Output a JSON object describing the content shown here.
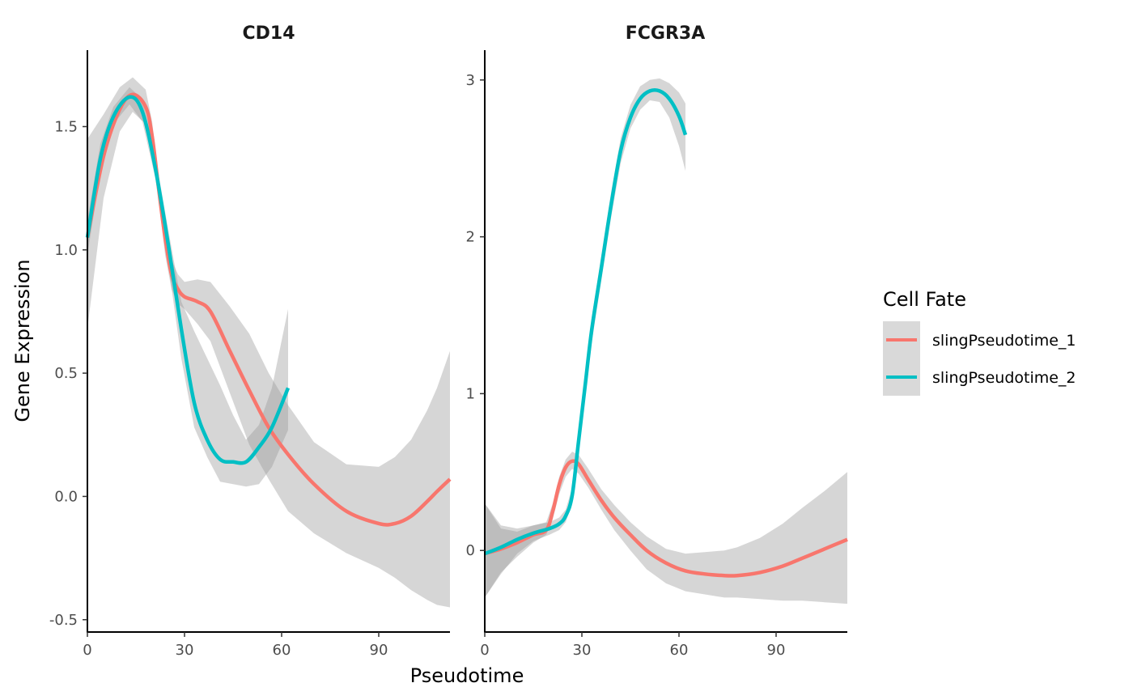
{
  "colors": {
    "series_1": "#F8766D",
    "series_2": "#00BFC4",
    "ribbon": "#999999",
    "axis": "#000000",
    "tick_text": "#4d4d4d"
  },
  "chart_data": [
    {
      "type": "line",
      "title": "CD14",
      "xlabel": "Pseudotime",
      "ylabel": "Gene Expression",
      "xlim": [
        0,
        112
      ],
      "ylim": [
        -0.55,
        1.81
      ],
      "xticks": [
        0,
        30,
        60,
        90
      ],
      "xtick_labels": [
        "0",
        "30",
        "60",
        "90"
      ],
      "yticks": [
        -0.5,
        0.0,
        0.5,
        1.0,
        1.5
      ],
      "ytick_labels": [
        "-0.5",
        "0.0",
        "0.5",
        "1.0",
        "1.5"
      ],
      "confidence_band": true,
      "series": [
        {
          "name": "slingPseudotime_1",
          "x": [
            0,
            5,
            10,
            14,
            18,
            20,
            22,
            24,
            26,
            28,
            30,
            34,
            38,
            44,
            50,
            56,
            62,
            70,
            80,
            90,
            95,
            100,
            105,
            108,
            112
          ],
          "y": [
            1.05,
            1.38,
            1.57,
            1.63,
            1.58,
            1.46,
            1.25,
            1.05,
            0.9,
            0.84,
            0.81,
            0.79,
            0.75,
            0.59,
            0.43,
            0.28,
            0.17,
            0.05,
            -0.06,
            -0.11,
            -0.11,
            -0.08,
            -0.02,
            0.02,
            0.07
          ],
          "lower": [
            0.68,
            1.21,
            1.48,
            1.56,
            1.51,
            1.4,
            1.2,
            0.98,
            0.84,
            0.78,
            0.76,
            0.7,
            0.63,
            0.42,
            0.21,
            0.07,
            -0.06,
            -0.15,
            -0.23,
            -0.29,
            -0.33,
            -0.38,
            -0.42,
            -0.44,
            -0.45
          ],
          "upper": [
            1.45,
            1.55,
            1.66,
            1.7,
            1.65,
            1.52,
            1.3,
            1.12,
            0.96,
            0.9,
            0.87,
            0.88,
            0.87,
            0.77,
            0.66,
            0.5,
            0.37,
            0.22,
            0.13,
            0.12,
            0.16,
            0.23,
            0.35,
            0.44,
            0.59
          ]
        },
        {
          "name": "slingPseudotime_2",
          "x": [
            0,
            4,
            8,
            13,
            17,
            21,
            25,
            29,
            33,
            37,
            41,
            45,
            49,
            53,
            57,
            62
          ],
          "y": [
            1.05,
            1.37,
            1.54,
            1.62,
            1.56,
            1.33,
            1.02,
            0.68,
            0.38,
            0.23,
            0.15,
            0.14,
            0.14,
            0.2,
            0.28,
            0.44
          ],
          "lower": [
            0.98,
            1.31,
            1.51,
            1.59,
            1.52,
            1.29,
            0.94,
            0.56,
            0.28,
            0.16,
            0.06,
            0.05,
            0.04,
            0.05,
            0.12,
            0.27
          ],
          "upper": [
            1.12,
            1.43,
            1.58,
            1.66,
            1.61,
            1.38,
            1.08,
            0.79,
            0.67,
            0.56,
            0.45,
            0.33,
            0.23,
            0.29,
            0.44,
            0.76
          ]
        }
      ]
    },
    {
      "type": "line",
      "title": "FCGR3A",
      "xlabel": "Pseudotime",
      "ylabel": "Gene Expression",
      "xlim": [
        0,
        112
      ],
      "ylim": [
        -0.52,
        3.19
      ],
      "xticks": [
        0,
        30,
        60,
        90
      ],
      "xtick_labels": [
        "0",
        "30",
        "60",
        "90"
      ],
      "yticks": [
        0,
        1,
        2,
        3
      ],
      "ytick_labels": [
        "0",
        "1",
        "2",
        "3"
      ],
      "confidence_band": true,
      "series": [
        {
          "name": "slingPseudotime_1",
          "x": [
            0,
            5,
            10,
            15,
            19,
            21,
            23,
            25,
            27,
            29,
            32,
            36,
            40,
            45,
            50,
            56,
            62,
            68,
            74,
            78,
            85,
            92,
            98,
            105,
            112
          ],
          "y": [
            -0.02,
            0.01,
            0.05,
            0.1,
            0.13,
            0.25,
            0.42,
            0.53,
            0.57,
            0.55,
            0.45,
            0.32,
            0.21,
            0.1,
            0.0,
            -0.08,
            -0.13,
            -0.15,
            -0.16,
            -0.16,
            -0.14,
            -0.1,
            -0.05,
            0.01,
            0.07
          ],
          "lower": [
            -0.3,
            -0.14,
            -0.04,
            0.05,
            0.1,
            0.2,
            0.36,
            0.47,
            0.52,
            0.49,
            0.4,
            0.26,
            0.13,
            0.0,
            -0.12,
            -0.21,
            -0.26,
            -0.28,
            -0.3,
            -0.3,
            -0.31,
            -0.32,
            -0.32,
            -0.33,
            -0.34
          ],
          "upper": [
            0.3,
            0.14,
            0.12,
            0.16,
            0.18,
            0.3,
            0.47,
            0.58,
            0.63,
            0.61,
            0.52,
            0.39,
            0.29,
            0.18,
            0.09,
            0.01,
            -0.02,
            -0.01,
            0.0,
            0.02,
            0.08,
            0.17,
            0.27,
            0.38,
            0.5
          ]
        },
        {
          "name": "slingPseudotime_2",
          "x": [
            0,
            5,
            10,
            15,
            20,
            23,
            25,
            27,
            29,
            31,
            33,
            36,
            39,
            42,
            45,
            48,
            51,
            54,
            57,
            60,
            62
          ],
          "y": [
            -0.02,
            0.02,
            0.07,
            0.11,
            0.14,
            0.17,
            0.22,
            0.35,
            0.7,
            1.05,
            1.4,
            1.8,
            2.2,
            2.55,
            2.76,
            2.88,
            2.93,
            2.93,
            2.88,
            2.77,
            2.65
          ],
          "lower": [
            -0.3,
            -0.15,
            -0.02,
            0.06,
            0.1,
            0.13,
            0.18,
            0.3,
            0.64,
            0.98,
            1.32,
            1.72,
            2.12,
            2.47,
            2.69,
            2.81,
            2.87,
            2.86,
            2.76,
            2.58,
            2.42
          ],
          "upper": [
            0.3,
            0.16,
            0.14,
            0.16,
            0.18,
            0.21,
            0.26,
            0.4,
            0.76,
            1.12,
            1.48,
            1.88,
            2.28,
            2.63,
            2.84,
            2.96,
            3.0,
            3.01,
            2.98,
            2.92,
            2.85
          ]
        }
      ]
    }
  ],
  "legend": {
    "title": "Cell Fate",
    "items": [
      "slingPseudotime_1",
      "slingPseudotime_2"
    ]
  },
  "axis_titles": {
    "x": "Pseudotime",
    "y": "Gene Expression"
  }
}
